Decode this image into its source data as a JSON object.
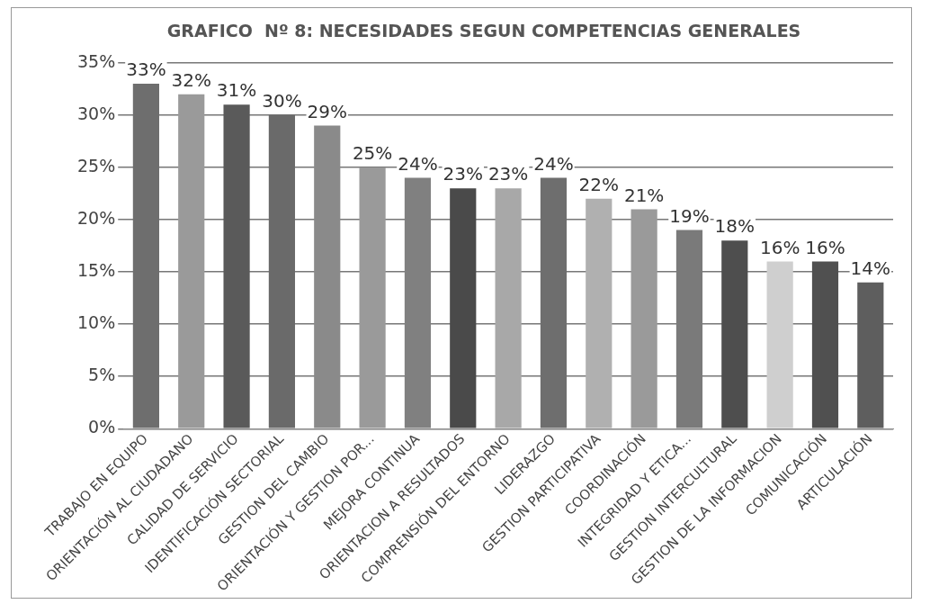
{
  "chart_data": {
    "type": "bar",
    "title": "GRAFICO  Nº 8: NECESIDADES SEGUN COMPETENCIAS GENERALES",
    "categories": [
      "TRABAJO EN EQUIPO",
      "ORIENTACIÓN AL CIUDADANO",
      "CALIDAD DE SERVICIO",
      "IDENTIFICACIÓN SECTORIAL",
      "GESTION DEL CAMBIO",
      "ORIENTACIÓN Y GESTION POR...",
      "MEJORA CONTINUA",
      "ORIENTACION A RESULTADOS",
      "COMPRENSIÓN DEL ENTORNO",
      "LIDERAZGO",
      "GESTION PARTICIPATIVA",
      "COORDINACIÓN",
      "INTEGRIDAD Y ETICA...",
      "GESTION INTERCULTURAL",
      "GESTION DE LA INFORMACION",
      "COMUNICACIÓN",
      "ARTICULACIÓN"
    ],
    "values": [
      33,
      32,
      31,
      30,
      29,
      25,
      24,
      23,
      23,
      24,
      22,
      21,
      19,
      18,
      16,
      16,
      14
    ],
    "value_labels": [
      "33%",
      "32%",
      "31%",
      "30%",
      "29%",
      "25%",
      "24%",
      "23%",
      "23%",
      "24%",
      "22%",
      "21%",
      "19%",
      "18%",
      "16%",
      "16%",
      "14%"
    ],
    "colors": [
      "#6e6e6e",
      "#9a9a9a",
      "#5a5a5a",
      "#6a6a6a",
      "#8a8a8a",
      "#9a9a9a",
      "#808080",
      "#4a4a4a",
      "#a8a8a8",
      "#6e6e6e",
      "#b0b0b0",
      "#9a9a9a",
      "#7a7a7a",
      "#4e4e4e",
      "#cfcfcf",
      "#505050",
      "#5e5e5e"
    ],
    "ylim": [
      0,
      35
    ],
    "yticks": [
      {
        "value": 0,
        "label": "0%"
      },
      {
        "value": 5,
        "label": "5%"
      },
      {
        "value": 10,
        "label": "10%"
      },
      {
        "value": 15,
        "label": "15%"
      },
      {
        "value": 20,
        "label": "20%"
      },
      {
        "value": 25,
        "label": "25%"
      },
      {
        "value": 30,
        "label": "30%"
      },
      {
        "value": 35,
        "label": "35%"
      }
    ],
    "grid": "y",
    "legend": false
  }
}
